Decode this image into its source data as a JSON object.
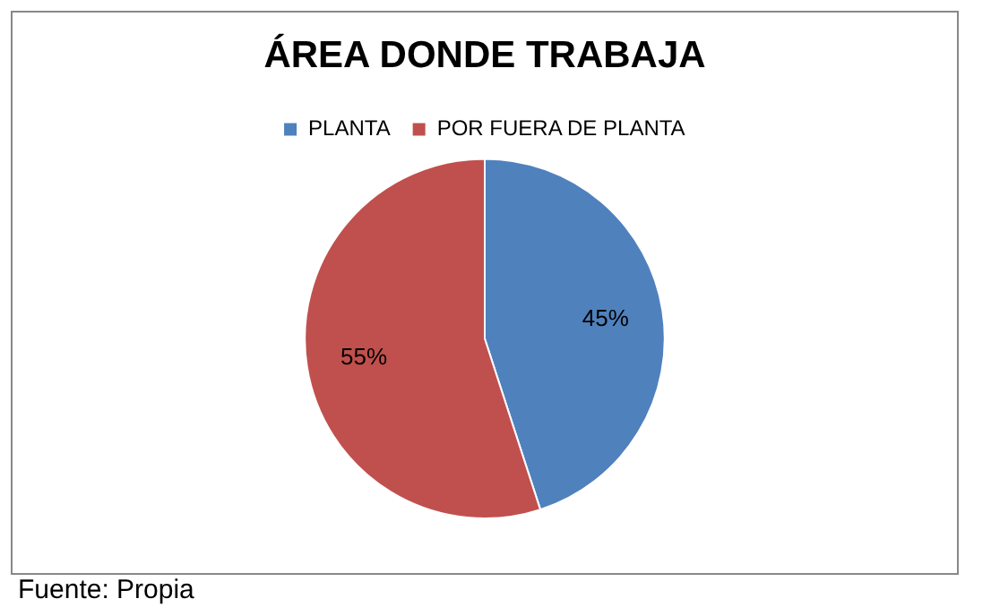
{
  "chart_data": {
    "type": "pie",
    "title": "ÁREA DONDE TRABAJA",
    "categories": [
      "PLANTA",
      "POR FUERA DE PLANTA"
    ],
    "values": [
      45,
      55
    ],
    "value_labels": [
      "45%",
      "55%"
    ],
    "colors": [
      "#4f81bd",
      "#c0504d"
    ],
    "legend": "top",
    "annotations": [
      "Fuente: Propia"
    ]
  }
}
